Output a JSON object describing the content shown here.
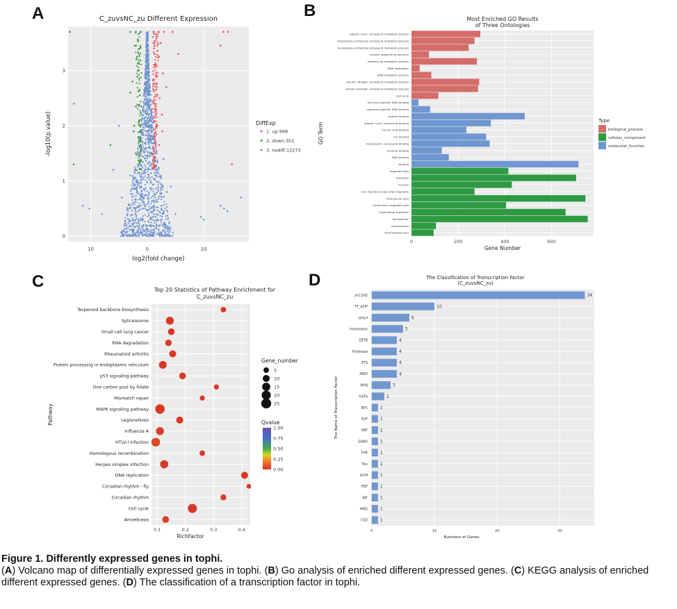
{
  "panel_letters": {
    "a": "A",
    "b": "B",
    "c": "C",
    "d": "D"
  },
  "caption": {
    "title": "Figure 1. Differently expressed genes in tophi.",
    "a": "A",
    "a_text": ") Volcano map of differentially expressed genes in tophi. (",
    "b": "B",
    "b_text": ") Go analysis of enriched different expressed genes. (",
    "c": "C",
    "c_text": ") KEGG analysis of enriched different expressed genes. (",
    "d": "D",
    "d_text": ") The classification of a transcription factor in tophi."
  },
  "chart_data": [
    {
      "id": "A",
      "type": "scatter",
      "title": "C_zuvsNC_zu Different Expression",
      "xlabel": "log2(fold change)",
      "ylabel": "-log10(p value)",
      "xlim": [
        -14,
        18
      ],
      "ylim": [
        -0.1,
        3.8
      ],
      "xticks": [
        -10,
        0,
        10
      ],
      "xtick_labels": [
        "10",
        "0",
        "10"
      ],
      "yticks": [
        0,
        1,
        2,
        3
      ],
      "legend_title": "DiffExp",
      "legend_position": "right",
      "grid": true,
      "series": [
        {
          "name": "1. up:968",
          "color": "#e8555b",
          "points": [
            [
              1.2,
              3.7
            ],
            [
              2.0,
              3.7
            ],
            [
              3.0,
              3.7
            ],
            [
              4.5,
              3.7
            ],
            [
              13.5,
              3.7
            ],
            [
              14.3,
              3.7
            ],
            [
              1.3,
              3.5
            ],
            [
              2.4,
              3.5
            ],
            [
              1.2,
              3.4
            ],
            [
              2.1,
              3.25
            ],
            [
              1.4,
              3.1
            ],
            [
              2.8,
              2.95
            ],
            [
              1.6,
              2.75
            ],
            [
              2.2,
              2.5
            ],
            [
              1.4,
              2.3
            ],
            [
              2.6,
              2.2
            ],
            [
              1.8,
              2.0
            ],
            [
              1.3,
              1.8
            ],
            [
              2.1,
              1.65
            ],
            [
              1.4,
              1.5
            ],
            [
              13.0,
              3.45
            ],
            [
              15.0,
              1.3
            ],
            [
              5.5,
              3.3
            ],
            [
              3.4,
              2.7
            ],
            [
              2.7,
              1.9
            ]
          ]
        },
        {
          "name": "2. down:351",
          "color": "#3a9a3a",
          "points": [
            [
              -13.7,
              3.7
            ],
            [
              -3.0,
              3.7
            ],
            [
              -2.0,
              3.7
            ],
            [
              -1.2,
              3.7
            ],
            [
              -2.2,
              3.45
            ],
            [
              -1.8,
              3.25
            ],
            [
              -1.5,
              3.0
            ],
            [
              -2.6,
              2.8
            ],
            [
              -1.3,
              2.55
            ],
            [
              -2.0,
              2.35
            ],
            [
              -1.4,
              2.1
            ],
            [
              -2.4,
              1.9
            ],
            [
              -1.2,
              1.75
            ],
            [
              -2.0,
              1.5
            ],
            [
              -13.0,
              1.3
            ],
            [
              -6.5,
              1.65
            ],
            [
              -1.6,
              3.55
            ],
            [
              -3.0,
              2.6
            ],
            [
              -2.3,
              2.0
            ]
          ]
        },
        {
          "name": "3. nodiff:12273",
          "color": "#6f93cf",
          "points": [
            [
              -13.0,
              2.4
            ],
            [
              -11.4,
              0.55
            ],
            [
              -10.2,
              0.5
            ],
            [
              -8.0,
              0.4
            ],
            [
              -6.0,
              1.2
            ],
            [
              -4.5,
              0.7
            ],
            [
              -3.5,
              0.4
            ],
            [
              -2.5,
              0.6
            ],
            [
              -1.5,
              0.3
            ],
            [
              -0.5,
              0.1
            ],
            [
              0.5,
              0.2
            ],
            [
              1.5,
              0.35
            ],
            [
              2.5,
              0.55
            ],
            [
              3.5,
              0.8
            ],
            [
              5.0,
              0.4
            ],
            [
              9.5,
              0.35
            ],
            [
              13.0,
              0.55
            ],
            [
              13.6,
              0.5
            ],
            [
              16.6,
              0.7
            ],
            [
              14.2,
              0.45
            ],
            [
              -5.0,
              2.0
            ],
            [
              -3.0,
              1.1
            ],
            [
              2.9,
              1.4
            ],
            [
              4.2,
              0.9
            ],
            [
              1.1,
              3.7
            ],
            [
              -1.1,
              3.7
            ],
            [
              10.0,
              0.3
            ]
          ]
        }
      ]
    },
    {
      "id": "B",
      "type": "bar",
      "title": "Most Enriched GO Results",
      "subtitle": "of Three Ontologies",
      "xlabel": "Gene Number",
      "ylabel": "GO Term",
      "xlim": [
        0,
        780
      ],
      "xticks": [
        0,
        200,
        400,
        600
      ],
      "legend_title": "Type",
      "legend_position": "right",
      "grid": true,
      "types": [
        {
          "name": "biological_process",
          "color": "#d46d6a"
        },
        {
          "name": "cellular_component",
          "color": "#2e9a42"
        },
        {
          "name": "molecular_function",
          "color": "#7097d0"
        }
      ],
      "categories": [
        "organic cyclic compound metabolic process",
        "heterocycle-containing compound metabolic process",
        "nucleobase-containing compound metabolic process",
        "cellular response to stimulus",
        "heterocycle metabolic process",
        "DNA replication",
        "DNA metabolic process",
        "cellular nitrogen compound metabolic process",
        "cellular aromatic compound metabolic process",
        "cell cycle",
        "structure-specific DNA binding",
        "sequence-specific DNA binding",
        "protein binding",
        "organic cyclic compound binding",
        "nucleic acid binding",
        "ion binding",
        "heterocyclic compound binding",
        "enzyme binding",
        "DNA binding",
        "binding",
        "organelle part",
        "organelle",
        "nucleus",
        "non-membrane-bounded organelle",
        "intracellular part",
        "intracellular organelle part",
        "intracellular organelle",
        "intracellular",
        "chromosome",
        "chromosomal part"
      ],
      "category_types": [
        0,
        0,
        0,
        0,
        0,
        0,
        0,
        0,
        0,
        0,
        2,
        2,
        2,
        2,
        2,
        2,
        2,
        2,
        2,
        2,
        1,
        1,
        1,
        1,
        1,
        1,
        1,
        1,
        1,
        1
      ],
      "values": [
        295,
        270,
        245,
        75,
        280,
        35,
        85,
        290,
        285,
        115,
        30,
        80,
        485,
        340,
        235,
        320,
        335,
        130,
        160,
        715,
        415,
        705,
        430,
        270,
        745,
        405,
        660,
        755,
        105,
        95
      ]
    },
    {
      "id": "C",
      "type": "scatter",
      "title": "Top 20 Statistics of Pathway Enrichment for",
      "subtitle": "C_zuvsNC_zu",
      "xlabel": "RichFactor",
      "ylabel": "Pathway",
      "xlim": [
        0.08,
        0.43
      ],
      "xticks": [
        0.1,
        0.2,
        0.3,
        0.4
      ],
      "xtick_labels": [
        "0.1",
        "0.2",
        "0.3",
        "0.4"
      ],
      "grid": true,
      "size_legend_title": "Gene_number",
      "size_legend": [
        5,
        10,
        15,
        20,
        25
      ],
      "color_legend_title": "Qvalue",
      "color_legend_ticks": [
        "1.00",
        "0.75",
        "0.50",
        "0.25",
        "0.00"
      ],
      "categories": [
        "Terpenoid backbone biosynthesis",
        "Spliceosome",
        "Small cell lung cancer",
        "RNA degradation",
        "Rheumatoid arthritis",
        "Protein processing in endoplasmic reticulum",
        "p53 signaling pathway",
        "One carbon pool by folate",
        "Mismatch repair",
        "MAPK signaling pathway",
        "Legionellosis",
        "Influenza A",
        "HTLV-I infection",
        "Homologous recombination",
        "Herpes simplex infection",
        "DNA replication",
        "Circadian rhythm - fly",
        "Circadian rhythm",
        "Cell cycle",
        "Amoebiasis"
      ],
      "richfactor": [
        0.335,
        0.145,
        0.15,
        0.14,
        0.155,
        0.12,
        0.19,
        0.31,
        0.26,
        0.11,
        0.18,
        0.11,
        0.095,
        0.26,
        0.125,
        0.41,
        0.425,
        0.335,
        0.225,
        0.13
      ],
      "gene_number": [
        5,
        14,
        9,
        8,
        10,
        13,
        9,
        4,
        4,
        22,
        10,
        14,
        18,
        5,
        15,
        10,
        3,
        6,
        20,
        9
      ],
      "qvalue": [
        0.02,
        0.02,
        0.02,
        0.02,
        0.02,
        0.02,
        0.02,
        0.02,
        0.02,
        0.02,
        0.02,
        0.03,
        0.06,
        0.02,
        0.02,
        0.02,
        0.02,
        0.02,
        0.02,
        0.03
      ]
    },
    {
      "id": "D",
      "type": "bar",
      "title": "The Classification of Transcription Factor",
      "subtitle": "(C_zuvsNC_zu)",
      "xlabel": "Numbers of Genes",
      "ylabel": "The Name of Transcription Factor",
      "xlim": [
        -0.2,
        35.5
      ],
      "xticks": [
        0,
        10,
        20,
        30
      ],
      "grid": true,
      "color": "#7097d0",
      "categories": [
        "zf-C2H2",
        "TF_bZIP",
        "bHLH",
        "Homeobox",
        "ZBTB",
        "Forkhead",
        "ETS",
        "ARID",
        "MYB",
        "GATA",
        "RFX",
        "E2F",
        "SRF",
        "SAND",
        "THR",
        "Tbx",
        "GCM",
        "HSF",
        "IRF",
        "HMG",
        "CSD"
      ],
      "values": [
        34,
        10,
        6,
        5,
        4,
        4,
        4,
        4,
        3,
        2,
        1,
        1,
        1,
        1,
        1,
        1,
        1,
        1,
        1,
        1,
        1
      ]
    }
  ]
}
